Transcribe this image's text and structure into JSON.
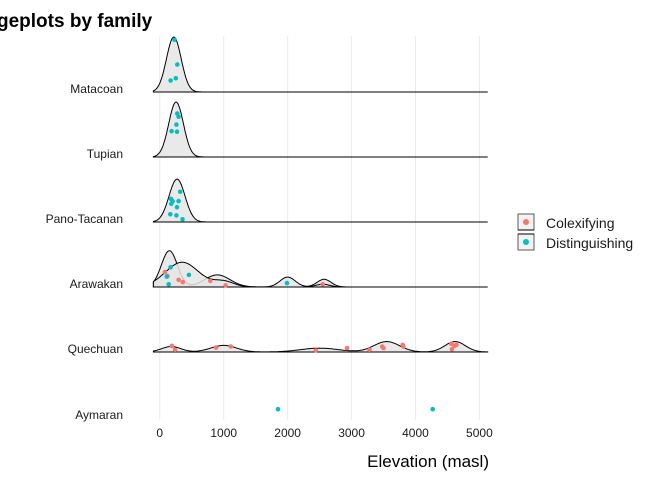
{
  "chart_data": {
    "type": "ridgeline",
    "title": "geplots by family",
    "xlabel": "Elevation (masl)",
    "xlim": [
      -450,
      5150
    ],
    "xticks": [
      0,
      1000,
      2000,
      3000,
      4000,
      5000
    ],
    "grid": true,
    "legend": {
      "placement": "right",
      "entries": [
        {
          "label": "Colexifying",
          "color": "#F8766D"
        },
        {
          "label": "Distinguishing",
          "color": "#00BFC4"
        }
      ]
    },
    "families": [
      {
        "name": "Matacoan",
        "density": [
          {
            "mu": 220,
            "sd": 115,
            "h": 1.0
          }
        ],
        "points": [
          {
            "x": 230,
            "y": 0.95,
            "group": "Distinguishing"
          },
          {
            "x": 275,
            "y": 0.5,
            "group": "Distinguishing"
          },
          {
            "x": 250,
            "y": 0.25,
            "group": "Distinguishing"
          },
          {
            "x": 170,
            "y": 0.21,
            "group": "Distinguishing"
          }
        ]
      },
      {
        "name": "Tupian",
        "density": [
          {
            "mu": 255,
            "sd": 115,
            "h": 1.0
          }
        ],
        "points": [
          {
            "x": 275,
            "y": 0.79,
            "group": "Distinguishing"
          },
          {
            "x": 295,
            "y": 0.73,
            "group": "Distinguishing"
          },
          {
            "x": 260,
            "y": 0.59,
            "group": "Distinguishing"
          },
          {
            "x": 185,
            "y": 0.47,
            "group": "Distinguishing"
          },
          {
            "x": 270,
            "y": 0.46,
            "group": "Distinguishing"
          }
        ]
      },
      {
        "name": "Pano-Tacanan",
        "density": [
          {
            "mu": 270,
            "sd": 125,
            "h": 0.78
          }
        ],
        "points": [
          {
            "x": 320,
            "y": 0.55,
            "group": "Distinguishing"
          },
          {
            "x": 175,
            "y": 0.42,
            "group": "Distinguishing"
          },
          {
            "x": 200,
            "y": 0.38,
            "group": "Distinguishing"
          },
          {
            "x": 295,
            "y": 0.38,
            "group": "Distinguishing"
          },
          {
            "x": 180,
            "y": 0.33,
            "group": "Distinguishing"
          },
          {
            "x": 270,
            "y": 0.27,
            "group": "Distinguishing"
          },
          {
            "x": 165,
            "y": 0.14,
            "group": "Distinguishing"
          },
          {
            "x": 260,
            "y": 0.12,
            "group": "Distinguishing"
          },
          {
            "x": 355,
            "y": 0.05,
            "group": "Distinguishing"
          }
        ]
      },
      {
        "name": "Arawakan",
        "density": [
          {
            "mu": 150,
            "sd": 125,
            "h": 0.66
          },
          {
            "mu": 900,
            "sd": 200,
            "h": 0.22
          },
          {
            "mu": 2000,
            "sd": 120,
            "h": 0.18
          },
          {
            "mu": 2570,
            "sd": 110,
            "h": 0.14
          }
        ],
        "density2": [
          {
            "mu": 350,
            "sd": 260,
            "h": 0.45
          },
          {
            "mu": 1000,
            "sd": 160,
            "h": 0.1
          },
          {
            "mu": 2550,
            "sd": 110,
            "h": 0.05
          }
        ],
        "points": [
          {
            "x": 170,
            "y": 0.36,
            "group": "Distinguishing"
          },
          {
            "x": 455,
            "y": 0.22,
            "group": "Distinguishing"
          },
          {
            "x": 120,
            "y": 0.2,
            "group": "Colexifying"
          },
          {
            "x": 80,
            "y": 0.27,
            "group": "Colexifying"
          },
          {
            "x": 110,
            "y": 0.19,
            "group": "Distinguishing"
          },
          {
            "x": 295,
            "y": 0.13,
            "group": "Colexifying"
          },
          {
            "x": 360,
            "y": 0.09,
            "group": "Colexifying"
          },
          {
            "x": 790,
            "y": 0.11,
            "group": "Colexifying"
          },
          {
            "x": 140,
            "y": 0.05,
            "group": "Distinguishing"
          },
          {
            "x": 1030,
            "y": 0.03,
            "group": "Colexifying"
          },
          {
            "x": 1990,
            "y": 0.07,
            "group": "Distinguishing"
          },
          {
            "x": 2550,
            "y": 0.05,
            "group": "Colexifying"
          }
        ]
      },
      {
        "name": "Quechuan",
        "density": [
          {
            "mu": 180,
            "sd": 150,
            "h": 0.1
          },
          {
            "mu": 1000,
            "sd": 200,
            "h": 0.12
          },
          {
            "mu": 2500,
            "sd": 300,
            "h": 0.07
          },
          {
            "mu": 3550,
            "sd": 200,
            "h": 0.19
          },
          {
            "mu": 4620,
            "sd": 160,
            "h": 0.19
          }
        ],
        "points": [
          {
            "x": 190,
            "y": 0.11,
            "group": "Colexifying"
          },
          {
            "x": 240,
            "y": 0.04,
            "group": "Colexifying"
          },
          {
            "x": 880,
            "y": 0.08,
            "group": "Colexifying"
          },
          {
            "x": 1110,
            "y": 0.1,
            "group": "Colexifying"
          },
          {
            "x": 2440,
            "y": 0.03,
            "group": "Colexifying"
          },
          {
            "x": 2930,
            "y": 0.07,
            "group": "Colexifying"
          },
          {
            "x": 3280,
            "y": 0.04,
            "group": "Colexifying"
          },
          {
            "x": 3480,
            "y": 0.1,
            "group": "Colexifying"
          },
          {
            "x": 3500,
            "y": 0.07,
            "group": "Colexifying"
          },
          {
            "x": 3800,
            "y": 0.13,
            "group": "Colexifying"
          },
          {
            "x": 3810,
            "y": 0.1,
            "group": "Colexifying"
          },
          {
            "x": 4560,
            "y": 0.15,
            "group": "Colexifying"
          },
          {
            "x": 4610,
            "y": 0.11,
            "group": "Colexifying"
          },
          {
            "x": 4640,
            "y": 0.13,
            "group": "Colexifying"
          },
          {
            "x": 4570,
            "y": 0.05,
            "group": "Colexifying"
          }
        ]
      },
      {
        "name": "Aymaran",
        "density": [],
        "points": [
          {
            "x": 1850,
            "y": 0.16,
            "group": "Distinguishing"
          },
          {
            "x": 4270,
            "y": 0.16,
            "group": "Distinguishing"
          }
        ]
      }
    ]
  }
}
